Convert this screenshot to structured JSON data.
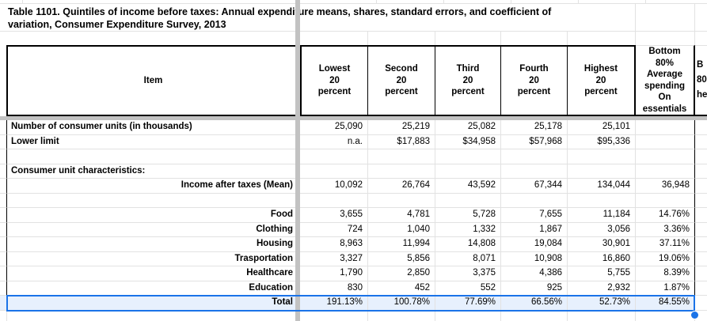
{
  "title": {
    "line1": "Table 1101. Quintiles of income before taxes: Annual expenditure means, shares, standard errors, and coefficient of",
    "line2": "variation, Consumer Expenditure Survey, 2013"
  },
  "table": {
    "item_header": "Item",
    "col_headers": [
      {
        "lines": [
          "Lowest",
          "20",
          "percent"
        ]
      },
      {
        "lines": [
          "Second",
          "20",
          "percent"
        ]
      },
      {
        "lines": [
          "Third",
          "20",
          "percent"
        ]
      },
      {
        "lines": [
          "Fourth",
          "20",
          "percent"
        ]
      },
      {
        "lines": [
          "Highest",
          "20",
          "percent"
        ]
      },
      {
        "lines": [
          "Bottom",
          "80%",
          "Average",
          "spending",
          "On",
          "essentials"
        ]
      },
      {
        "lines": [
          "B",
          "80",
          "he"
        ]
      }
    ],
    "rows": [
      {
        "label": "Number of consumer units (in thousands)",
        "align": "left",
        "selected": false,
        "values": [
          "25,090",
          "25,219",
          "25,082",
          "25,178",
          "25,101",
          "",
          ""
        ]
      },
      {
        "label": "Lower limit",
        "align": "left",
        "selected": false,
        "values": [
          "n.a.",
          "$17,883",
          "$34,958",
          "$57,968",
          "$95,336",
          "",
          ""
        ]
      },
      {
        "label": "",
        "align": "left",
        "selected": false,
        "values": [
          "",
          "",
          "",
          "",
          "",
          "",
          ""
        ]
      },
      {
        "label": "Consumer unit characteristics:",
        "align": "left",
        "selected": false,
        "values": [
          "",
          "",
          "",
          "",
          "",
          "",
          ""
        ]
      },
      {
        "label": "Income after taxes (Mean)",
        "align": "right",
        "selected": false,
        "values": [
          "10,092",
          "26,764",
          "43,592",
          "67,344",
          "134,044",
          "36,948",
          ""
        ]
      },
      {
        "label": "",
        "align": "left",
        "selected": false,
        "values": [
          "",
          "",
          "",
          "",
          "",
          "",
          ""
        ]
      },
      {
        "label": "Food",
        "align": "right",
        "selected": false,
        "values": [
          "3,655",
          "4,781",
          "5,728",
          "7,655",
          "11,184",
          "14.76%",
          ""
        ]
      },
      {
        "label": "Clothing",
        "align": "right",
        "selected": false,
        "values": [
          "724",
          "1,040",
          "1,332",
          "1,867",
          "3,056",
          "3.36%",
          ""
        ]
      },
      {
        "label": "Housing",
        "align": "right",
        "selected": false,
        "values": [
          "8,963",
          "11,994",
          "14,808",
          "19,084",
          "30,901",
          "37.11%",
          ""
        ]
      },
      {
        "label": "Trasportation",
        "align": "right",
        "selected": false,
        "values": [
          "3,327",
          "5,856",
          "8,071",
          "10,908",
          "16,860",
          "19.06%",
          ""
        ]
      },
      {
        "label": "Healthcare",
        "align": "right",
        "selected": false,
        "values": [
          "1,790",
          "2,850",
          "3,375",
          "4,386",
          "5,755",
          "8.39%",
          ""
        ]
      },
      {
        "label": "Education",
        "align": "right",
        "selected": false,
        "values": [
          "830",
          "452",
          "552",
          "925",
          "2,932",
          "1.87%",
          ""
        ]
      },
      {
        "label": "Total",
        "align": "right",
        "selected": true,
        "values": [
          "191.13%",
          "100.78%",
          "77.69%",
          "66.56%",
          "52.73%",
          "84.55%",
          ""
        ]
      }
    ]
  },
  "colors": {
    "selection_border": "#1a73e8",
    "selection_fill": "#e7f0fd",
    "gridline": "#e2e2e2",
    "frozen_divider": "#c2c2c2",
    "table_border": "#000000"
  }
}
